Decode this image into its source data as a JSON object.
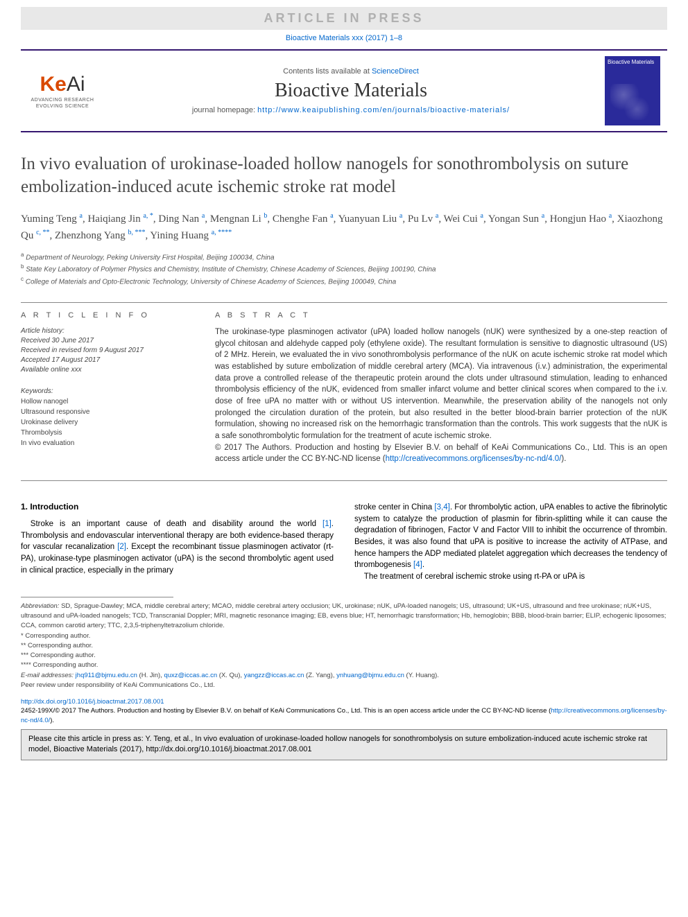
{
  "proof_banner": "ARTICLE IN PRESS",
  "citation_top": {
    "prefix": "Bioactive Materials xxx (2017) 1–8",
    "link_text": "Bioactive Materials xxx (2017) 1–8"
  },
  "header": {
    "logo_main": "KeAi",
    "logo_sub1": "ADVANCING RESEARCH",
    "logo_sub2": "EVOLVING SCIENCE",
    "sd_prefix": "Contents lists available at ",
    "sd_link": "ScienceDirect",
    "journal": "Bioactive Materials",
    "homepage_label": "journal homepage: ",
    "homepage_url": "http://www.keaipublishing.com/en/journals/bioactive-materials/",
    "cover_text": "Bioactive Materials"
  },
  "title": "In vivo evaluation of urokinase-loaded hollow nanogels for sonothrombolysis on suture embolization-induced acute ischemic stroke rat model",
  "authors_html": "Yuming Teng <sup>a</sup>, Haiqiang Jin <sup>a, *</sup>, Ding Nan <sup>a</sup>, Mengnan Li <sup>b</sup>, Chenghe Fan <sup>a</sup>, Yuanyuan Liu <sup>a</sup>, Pu Lv <sup>a</sup>, Wei Cui <sup>a</sup>, Yongan Sun <sup>a</sup>, Hongjun Hao <sup>a</sup>, Xiaozhong Qu <sup>c, **</sup>, Zhenzhong Yang <sup>b, ***</sup>, Yining Huang <sup>a, ****</sup>",
  "affiliations": [
    {
      "sup": "a",
      "text": "Department of Neurology, Peking University First Hospital, Beijing 100034, China"
    },
    {
      "sup": "b",
      "text": "State Key Laboratory of Polymer Physics and Chemistry, Institute of Chemistry, Chinese Academy of Sciences, Beijing 100190, China"
    },
    {
      "sup": "c",
      "text": "College of Materials and Opto-Electronic Technology, University of Chinese Academy of Sciences, Beijing 100049, China"
    }
  ],
  "article_info": {
    "heading": "A R T I C L E   I N F O",
    "history_label": "Article history:",
    "received": "Received 30 June 2017",
    "revised": "Received in revised form 9 August 2017",
    "accepted": "Accepted 17 August 2017",
    "online": "Available online xxx",
    "keywords_label": "Keywords:",
    "keywords": [
      "Hollow nanogel",
      "Ultrasound responsive",
      "Urokinase delivery",
      "Thrombolysis",
      "In vivo evaluation"
    ]
  },
  "abstract": {
    "heading": "A B S T R A C T",
    "body": "The urokinase-type plasminogen activator (uPA) loaded hollow nanogels (nUK) were synthesized by a one-step reaction of glycol chitosan and aldehyde capped poly (ethylene oxide). The resultant formulation is sensitive to diagnostic ultrasound (US) of 2 MHz. Herein, we evaluated the in vivo sonothrombolysis performance of the nUK on acute ischemic stroke rat model which was established by suture embolization of middle cerebral artery (MCA). Via intravenous (i.v.) administration, the experimental data prove a controlled release of the therapeutic protein around the clots under ultrasound stimulation, leading to enhanced thrombolysis efficiency of the nUK, evidenced from smaller infarct volume and better clinical scores when compared to the i.v. dose of free uPA no matter with or without US intervention. Meanwhile, the preservation ability of the nanogels not only prolonged the circulation duration of the protein, but also resulted in the better blood-brain barrier protection of the nUK formulation, showing no increased risk on the hemorrhagic transformation than the controls. This work suggests that the nUK is a safe sonothrombolytic formulation for the treatment of acute ischemic stroke.",
    "copyright": "© 2017 The Authors. Production and hosting by Elsevier B.V. on behalf of KeAi Communications Co., Ltd. This is an open access article under the CC BY-NC-ND license (",
    "license_url": "http://creativecommons.org/licenses/by-nc-nd/4.0/",
    "close": ")."
  },
  "intro": {
    "heading": "1. Introduction",
    "p1_a": "Stroke is an important cause of death and disability around the world ",
    "p1_ref1": "[1]",
    "p1_b": ". Thrombolysis and endovascular interventional therapy are both evidence-based therapy for vascular recanalization ",
    "p1_ref2": "[2]",
    "p1_c": ". Except the recombinant tissue plasminogen activator (rt-PA), urokinase-type plasminogen activator (uPA) is the second thrombolytic agent used in clinical practice, especially in the primary",
    "p2_a": "stroke center in China ",
    "p2_ref1": "[3,4]",
    "p2_b": ". For thrombolytic action, uPA enables to active the fibrinolytic system to catalyze the production of plasmin for fibrin-splitting while it can cause the degradation of fibrinogen, Factor V and Factor VIII to inhibit the occurrence of thrombin. Besides, it was also found that uPA is positive to increase the activity of ATPase, and hence hampers the ADP mediated platelet aggregation which decreases the tendency of thrombogenesis ",
    "p2_ref2": "[4]",
    "p2_c": ".",
    "p3": "The treatment of cerebral ischemic stroke using rt-PA or uPA is"
  },
  "footnotes": {
    "abbrev_label": "Abbreviation:",
    "abbrev_text": " SD, Sprague-Dawley; MCA, middle cerebral artery; MCAO, middle cerebral artery occlusion; UK, urokinase; nUK, uPA-loaded nanogels; US, ultrasound; UK+US, ultrasound and free urokinase; nUK+US, ultrasound and uPA-loaded nanogels; TCD, Transcranial Doppler; MRI, magnetic resonance imaging; EB, evens blue; HT, hemorrhagic transformation; Hb, hemoglobin; BBB, blood-brain barrier; ELIP, echogenic liposomes; CCA, common carotid artery; TTC, 2,3,5-triphenyltetrazolium chloride.",
    "corr": [
      "* Corresponding author.",
      "** Corresponding author.",
      "*** Corresponding author.",
      "**** Corresponding author."
    ],
    "email_label": "E-mail addresses: ",
    "emails": [
      {
        "addr": "jhq911@bjmu.edu.cn",
        "who": " (H. Jin), "
      },
      {
        "addr": "quxz@iccas.ac.cn",
        "who": " (X. Qu), "
      },
      {
        "addr": "yangzz@iccas.ac.cn",
        "who": " (Z. Yang), "
      },
      {
        "addr": "ynhuang@bjmu.edu.cn",
        "who": " (Y. Huang)."
      }
    ],
    "peer": "Peer review under responsibility of KeAi Communications Co., Ltd."
  },
  "doi": {
    "url": "http://dx.doi.org/10.1016/j.bioactmat.2017.08.001",
    "issn_line": "2452-199X/© 2017 The Authors. Production and hosting by Elsevier B.V. on behalf of KeAi Communications Co., Ltd. This is an open access article under the CC BY-NC-ND license (",
    "lic_url": "http://creativecommons.org/licenses/by-nc-nd/4.0/",
    "close": ")."
  },
  "citebox": "Please cite this article in press as: Y. Teng, et al., In vivo evaluation of urokinase-loaded hollow nanogels for sonothrombolysis on suture embolization-induced acute ischemic stroke rat model, Bioactive Materials (2017), http://dx.doi.org/10.1016/j.bioactmat.2017.08.001",
  "colors": {
    "link": "#0066cc",
    "rule": "#34166f",
    "logo_orange": "#d94800",
    "grey_bg": "#e8e8e8"
  }
}
